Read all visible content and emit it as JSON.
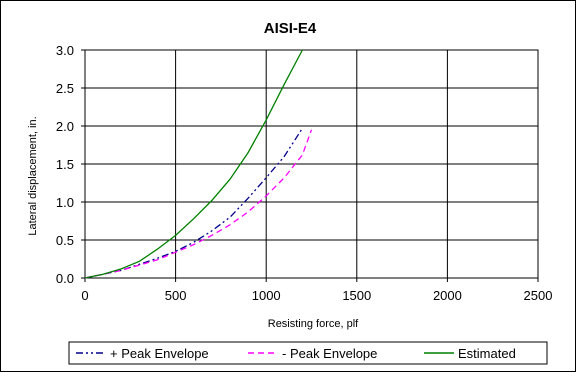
{
  "chart_data": {
    "type": "line",
    "title": "AISI-E4",
    "xlabel": "Resisting force, plf",
    "ylabel": "Lateral displacement, in.",
    "xlim": [
      0,
      2500
    ],
    "ylim": [
      0,
      3.0
    ],
    "xticks": [
      "0",
      "500",
      "1000",
      "1500",
      "2000",
      "2500"
    ],
    "yticks": [
      "0.0",
      "0.5",
      "1.0",
      "1.5",
      "2.0",
      "2.5",
      "3.0"
    ],
    "grid": true,
    "legend_position": "bottom",
    "series": [
      {
        "name": "+ Peak Envelope",
        "color": "#00008B",
        "dash": "dash-dot-dot",
        "x": [
          0,
          100,
          200,
          300,
          400,
          500,
          600,
          700,
          800,
          900,
          1000,
          1100,
          1200
        ],
        "y": [
          0.0,
          0.05,
          0.1,
          0.18,
          0.26,
          0.35,
          0.47,
          0.62,
          0.8,
          1.05,
          1.32,
          1.6,
          1.97
        ]
      },
      {
        "name": "- Peak Envelope",
        "color": "#FF00FF",
        "dash": "dash",
        "x": [
          0,
          100,
          200,
          300,
          400,
          500,
          600,
          700,
          800,
          900,
          1000,
          1100,
          1200,
          1250
        ],
        "y": [
          0.0,
          0.05,
          0.1,
          0.17,
          0.24,
          0.34,
          0.44,
          0.56,
          0.7,
          0.87,
          1.08,
          1.32,
          1.62,
          1.95
        ]
      },
      {
        "name": "Estimated",
        "color": "#008000",
        "dash": "solid",
        "x": [
          0,
          100,
          200,
          300,
          400,
          500,
          600,
          700,
          800,
          900,
          1000,
          1100,
          1200
        ],
        "y": [
          0.0,
          0.05,
          0.12,
          0.22,
          0.38,
          0.56,
          0.78,
          1.02,
          1.3,
          1.65,
          2.08,
          2.55,
          3.0
        ]
      }
    ]
  }
}
